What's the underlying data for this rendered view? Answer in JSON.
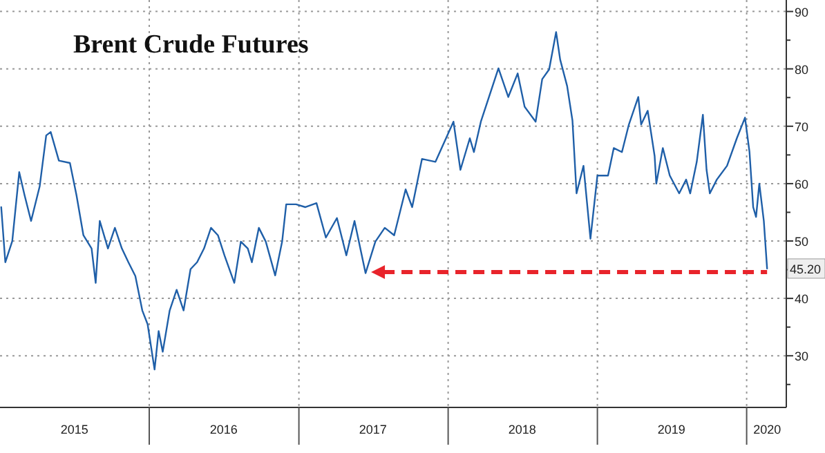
{
  "chart_data": {
    "type": "line",
    "title": "Brent Crude Futures",
    "x": [
      "2015-01-04",
      "2015-01-14",
      "2015-01-31",
      "2015-02-17",
      "2015-03-02",
      "2015-03-18",
      "2015-04-08",
      "2015-04-24",
      "2015-05-05",
      "2015-05-25",
      "2015-06-21",
      "2015-07-07",
      "2015-07-24",
      "2015-08-13",
      "2015-08-23",
      "2015-09-02",
      "2015-09-22",
      "2015-10-09",
      "2015-10-26",
      "2015-11-11",
      "2015-11-28",
      "2015-12-15",
      "2015-12-28",
      "2016-01-14",
      "2016-01-24",
      "2016-02-03",
      "2016-02-20",
      "2016-03-08",
      "2016-03-25",
      "2016-04-11",
      "2016-04-27",
      "2016-05-14",
      "2016-05-31",
      "2016-06-17",
      "2016-07-03",
      "2016-07-27",
      "2016-08-12",
      "2016-08-29",
      "2016-09-08",
      "2016-09-25",
      "2016-10-12",
      "2016-11-04",
      "2016-11-21",
      "2016-12-01",
      "2016-12-25",
      "2017-01-17",
      "2017-02-13",
      "2017-03-08",
      "2017-04-04",
      "2017-04-27",
      "2017-05-17",
      "2017-06-13",
      "2017-07-07",
      "2017-07-30",
      "2017-08-22",
      "2017-09-19",
      "2017-10-05",
      "2017-10-29",
      "2017-12-01",
      "2018-01-14",
      "2018-01-31",
      "2018-02-23",
      "2018-03-05",
      "2018-03-22",
      "2018-05-04",
      "2018-05-28",
      "2018-06-20",
      "2018-07-07",
      "2018-08-03",
      "2018-08-19",
      "2018-09-05",
      "2018-09-22",
      "2018-10-02",
      "2018-10-19",
      "2018-11-01",
      "2018-11-11",
      "2018-11-28",
      "2018-12-15",
      "2019-01-01",
      "2019-01-27",
      "2019-02-10",
      "2019-03-02",
      "2019-03-19",
      "2019-04-11",
      "2019-04-18",
      "2019-05-04",
      "2019-05-21",
      "2019-05-25",
      "2019-06-10",
      "2019-06-27",
      "2019-07-20",
      "2019-08-06",
      "2019-08-16",
      "2019-09-01",
      "2019-09-16",
      "2019-09-25",
      "2019-10-03",
      "2019-10-20",
      "2019-11-14",
      "2019-12-08",
      "2019-12-28",
      "2020-01-08",
      "2020-01-17",
      "2020-01-24",
      "2020-02-01",
      "2020-02-12",
      "2020-02-20"
    ],
    "series": [
      {
        "color": "#1f5fa8",
        "values": [
          55.9,
          46.3,
          50,
          62,
          58,
          53.5,
          59.5,
          68.4,
          69,
          64,
          63.6,
          58,
          51,
          48.7,
          42.7,
          53.5,
          48.7,
          52.3,
          48.7,
          46.3,
          43.9,
          37.9,
          35.5,
          27.6,
          34.3,
          30.7,
          37.9,
          41.5,
          37.9,
          45.1,
          46.3,
          48.7,
          52.3,
          51,
          47.5,
          42.7,
          49.9,
          48.7,
          46.3,
          52.3,
          49.9,
          44,
          49.9,
          56.4,
          56.4,
          55.9,
          56.6,
          50.6,
          54,
          47.5,
          53.5,
          44.4,
          49.9,
          52.3,
          51,
          59,
          55.9,
          64.3,
          63.8,
          70.8,
          62.4,
          67.9,
          65.5,
          70.8,
          80.1,
          75.1,
          79.2,
          73.4,
          70.8,
          78.2,
          79.9,
          86.4,
          81.6,
          77,
          71,
          58.3,
          63.1,
          50.4,
          61.4,
          61.4,
          66.2,
          65.5,
          70.3,
          75.1,
          70.3,
          72.7,
          64.8,
          60,
          66.2,
          61.4,
          58.3,
          60.7,
          58.3,
          63.8,
          72,
          62.4,
          58.3,
          60.7,
          63.1,
          67.9,
          71.5,
          65.5,
          55.9,
          54.2,
          60,
          53.5,
          45.2
        ]
      }
    ],
    "xlim": [
      "2015-01-01",
      "2020-04-07"
    ],
    "xticks": [
      {
        "value": "2015-07-02",
        "label": "2015"
      },
      {
        "value": "2016-01-01",
        "label": null
      },
      {
        "value": "2016-07-01",
        "label": "2016"
      },
      {
        "value": "2017-01-01",
        "label": null
      },
      {
        "value": "2017-07-01",
        "label": "2017"
      },
      {
        "value": "2018-01-01",
        "label": null
      },
      {
        "value": "2018-07-01",
        "label": "2018"
      },
      {
        "value": "2019-01-01",
        "label": null
      },
      {
        "value": "2019-07-01",
        "label": "2019"
      },
      {
        "value": "2020-01-01",
        "label": null
      },
      {
        "value": "2020-02-20",
        "label": "2020"
      }
    ],
    "ylim": [
      21,
      92
    ],
    "yticks": [
      {
        "value": 25,
        "label": null
      },
      30,
      {
        "value": 35,
        "label": null
      },
      40,
      {
        "value": 45,
        "label": null
      },
      50,
      {
        "value": 55,
        "label": null
      },
      60,
      {
        "value": 65,
        "label": null
      },
      70,
      {
        "value": 75,
        "label": null
      },
      80,
      {
        "value": 85,
        "label": null
      },
      90
    ],
    "grid": true,
    "ref_lines": [
      {
        "axis": "y",
        "value": 44.6,
        "color": "#e8242b",
        "line_style": "dashed"
      }
    ],
    "annotations": [
      {
        "text": "45.20",
        "x": "2020-02-20",
        "y": 45.2
      }
    ]
  }
}
